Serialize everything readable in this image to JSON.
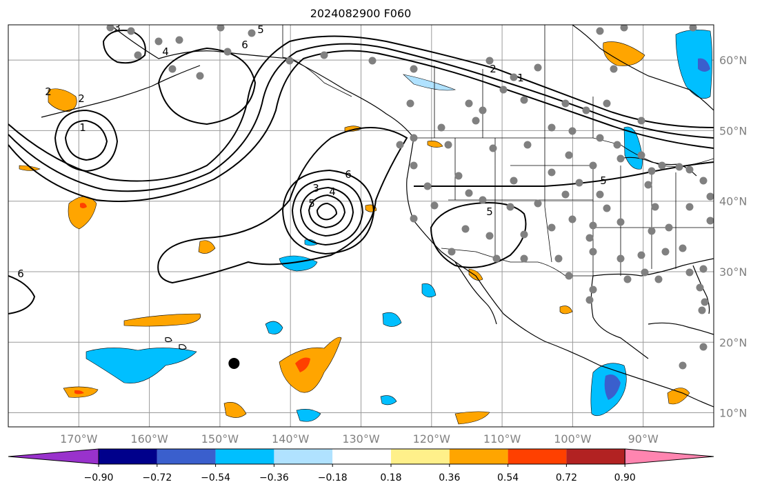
{
  "title": "2024082900 F060",
  "map": {
    "lon_range": [
      -180,
      -80
    ],
    "lat_range": [
      8,
      65
    ],
    "lat_ticks": [
      "60°N",
      "50°N",
      "40°N",
      "30°N",
      "20°N",
      "10°N"
    ],
    "lon_ticks": [
      "170°W",
      "160°W",
      "150°W",
      "140°W",
      "130°W",
      "120°W",
      "110°W",
      "100°W",
      "90°W"
    ],
    "contour_labels": [
      "5",
      "6",
      "4",
      "3",
      "2",
      "1",
      "2",
      "3",
      "4",
      "5",
      "6",
      "5",
      "5",
      "6",
      "2",
      "1"
    ],
    "black_marker": {
      "lon": -148.0,
      "lat": 17.0
    }
  },
  "colorbar": {
    "tick_labels": [
      "−0.90",
      "−0.72",
      "−0.54",
      "−0.36",
      "−0.18",
      "0.18",
      "0.36",
      "0.54",
      "0.72",
      "0.90"
    ],
    "colors": [
      "#9932cc",
      "#00008b",
      "#3a5fcd",
      "#00bfff",
      "#b0e2ff",
      "#ffffff",
      "#fff08a",
      "#ffa500",
      "#ff4000",
      "#b22222",
      "#ff85b0"
    ]
  }
}
